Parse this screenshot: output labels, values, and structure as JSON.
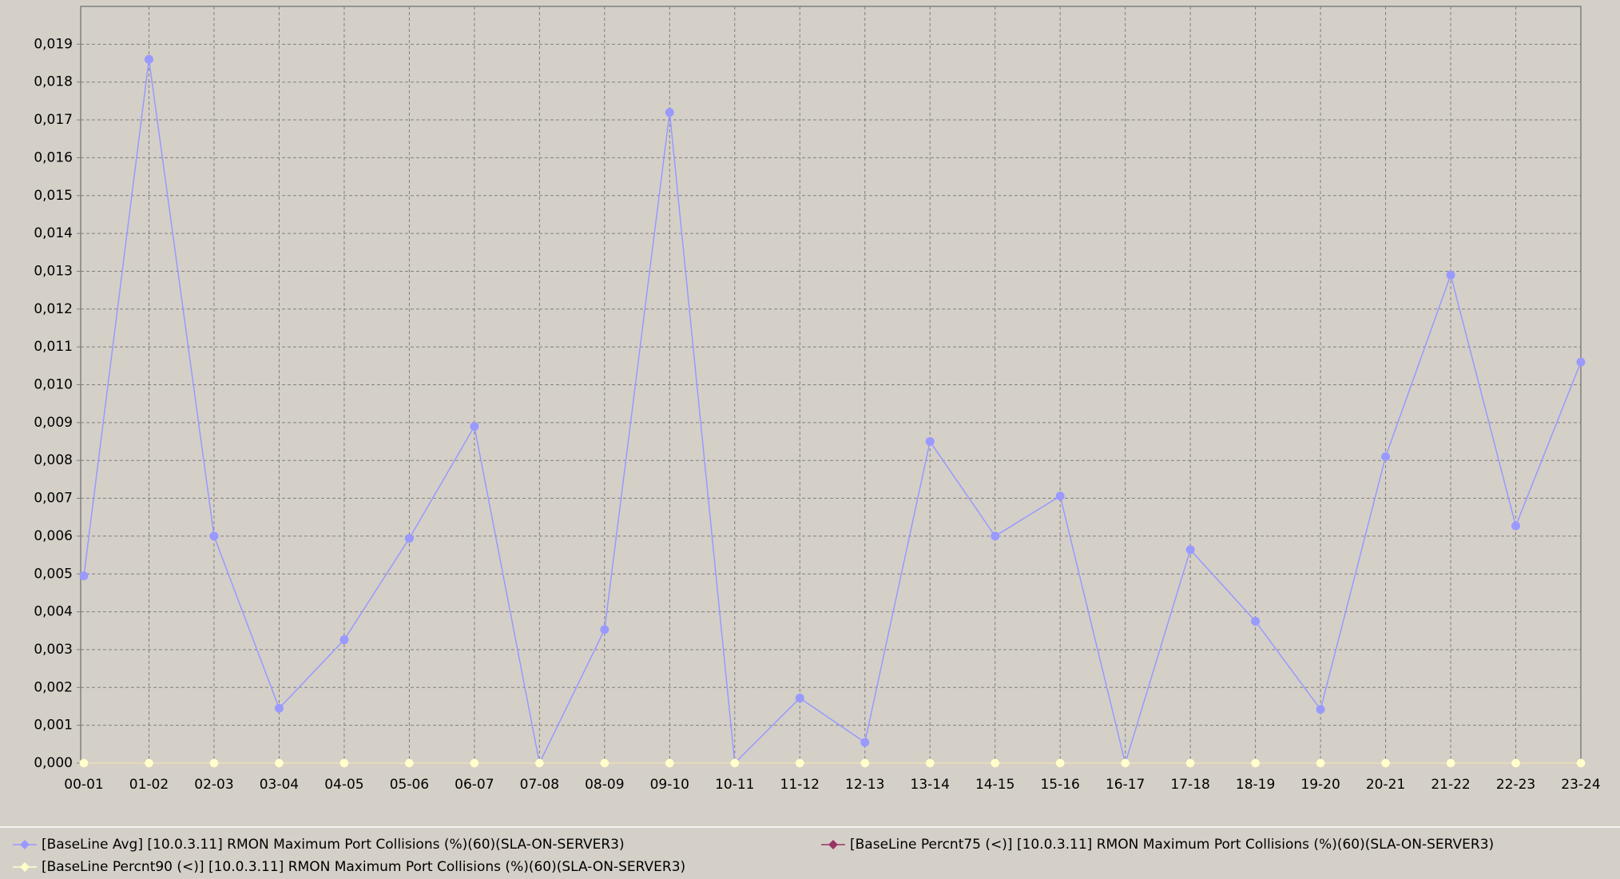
{
  "chart_data": {
    "type": "line",
    "categories": [
      "00-01",
      "01-02",
      "02-03",
      "03-04",
      "04-05",
      "05-06",
      "06-07",
      "07-08",
      "08-09",
      "09-10",
      "10-11",
      "11-12",
      "12-13",
      "13-14",
      "14-15",
      "15-16",
      "16-17",
      "17-18",
      "18-19",
      "19-20",
      "20-21",
      "21-22",
      "22-23",
      "23-24"
    ],
    "series": [
      {
        "name": "[BaseLine Avg] [10.0.3.11] RMON Maximum Port Collisions (%)(60)(SLA-ON-SERVER3)",
        "color": "#9999ff",
        "values": [
          0.00495,
          0.0186,
          0.006,
          0.00145,
          0.00326,
          0.00594,
          0.0089,
          0,
          0.00353,
          0.0172,
          0,
          0.00172,
          0.00055,
          0.0085,
          0.006,
          0.00706,
          0,
          0.00564,
          0.00375,
          0.00142,
          0.0081,
          0.0129,
          0.00627,
          0.0106
        ]
      },
      {
        "name": "[BaseLine Percnt75 (<)] [10.0.3.11] RMON Maximum Port Collisions (%)(60)(SLA-ON-SERVER3)",
        "color": "#993366",
        "values": [
          0,
          0,
          0,
          0,
          0,
          0,
          0,
          0,
          0,
          0,
          0,
          0,
          0,
          0,
          0,
          0,
          0,
          0,
          0,
          0,
          0,
          0,
          0,
          0
        ]
      },
      {
        "name": "[BaseLine Percnt90 (<)] [10.0.3.11] RMON Maximum Port Collisions (%)(60)(SLA-ON-SERVER3)",
        "color": "#ffffcc",
        "values": [
          0,
          0,
          0,
          0,
          0,
          0,
          0,
          0,
          0,
          0,
          0,
          0,
          0,
          0,
          0,
          0,
          0,
          0,
          0,
          0,
          0,
          0,
          0,
          0
        ]
      }
    ],
    "ylim": [
      0,
      0.02
    ],
    "yticks": [
      {
        "value": 0,
        "label": "0,000"
      },
      {
        "value": 0.001,
        "label": "0,001"
      },
      {
        "value": 0.002,
        "label": "0,002"
      },
      {
        "value": 0.003,
        "label": "0,003"
      },
      {
        "value": 0.004,
        "label": "0,004"
      },
      {
        "value": 0.005,
        "label": "0,005"
      },
      {
        "value": 0.006,
        "label": "0,006"
      },
      {
        "value": 0.007,
        "label": "0,007"
      },
      {
        "value": 0.008,
        "label": "0,008"
      },
      {
        "value": 0.009,
        "label": "0,009"
      },
      {
        "value": 0.01,
        "label": "0,010"
      },
      {
        "value": 0.011,
        "label": "0,011"
      },
      {
        "value": 0.012,
        "label": "0,012"
      },
      {
        "value": 0.013,
        "label": "0,013"
      },
      {
        "value": 0.014,
        "label": "0,014"
      },
      {
        "value": 0.015,
        "label": "0,015"
      },
      {
        "value": 0.016,
        "label": "0,016"
      },
      {
        "value": 0.017,
        "label": "0,017"
      },
      {
        "value": 0.018,
        "label": "0,018"
      },
      {
        "value": 0.019,
        "label": "0,019"
      }
    ],
    "grid": true,
    "legend": "bottom"
  }
}
